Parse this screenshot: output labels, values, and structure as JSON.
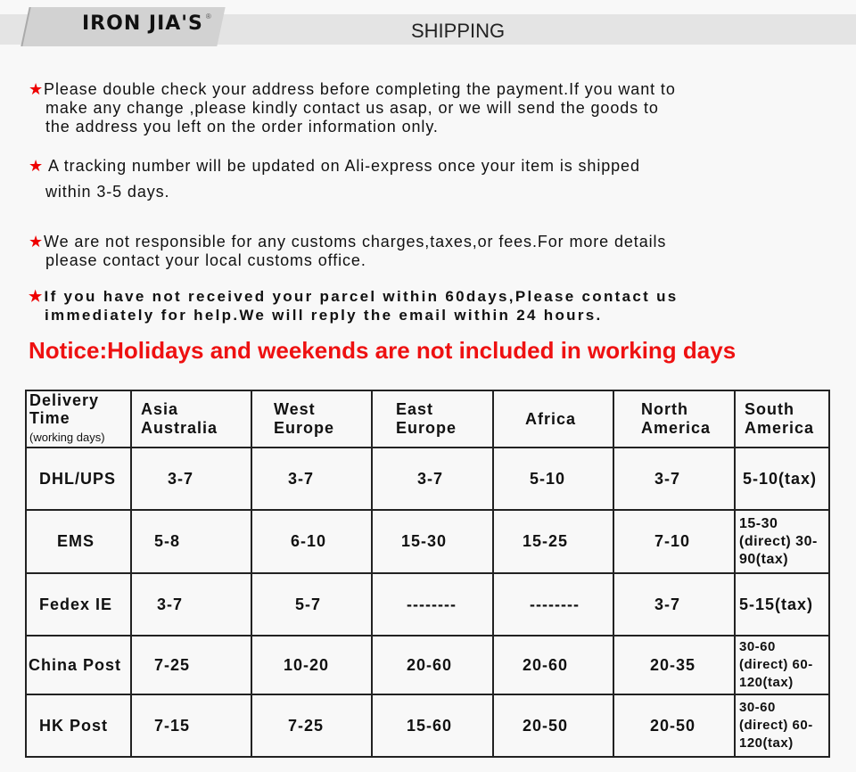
{
  "header": {
    "logo": "IRON JIA'S",
    "registered": "®",
    "title": "SHIPPING"
  },
  "notes": [
    {
      "star": "★",
      "lines": [
        "Please double check your address before completing the payment.If you want to",
        "make any change ,please kindly contact us asap, or we will send the goods to",
        "the address you left on the order information only."
      ]
    },
    {
      "star": "★",
      "lines": [
        " A tracking number will be updated on Ali-express once your item is shipped",
        "within 3-5 days."
      ]
    },
    {
      "star": "★",
      "lines": [
        "We are not responsible for any customs charges,taxes,or fees.For more details",
        "please contact your local customs office."
      ]
    },
    {
      "star": "★",
      "lines": [
        "If you have not received your parcel within 60days,Please contact us",
        "immediately for help.We will reply the email within 24 hours."
      ]
    }
  ],
  "notice": "Notice:Holidays and weekends are not included in working days",
  "table": {
    "corner": {
      "line1": "Delivery",
      "line2": "Time",
      "line3": "(working days)"
    },
    "headers": [
      [
        "Asia",
        "Australia"
      ],
      [
        "West",
        "Europe"
      ],
      [
        "East",
        "Europe"
      ],
      [
        "Africa",
        ""
      ],
      [
        "North",
        "America"
      ],
      [
        "South",
        "America"
      ]
    ],
    "rows": [
      {
        "carrier": "DHL/UPS",
        "values": [
          "3-7",
          "3-7",
          "3-7",
          "5-10",
          "3-7",
          "5-10(tax)"
        ]
      },
      {
        "carrier": "EMS",
        "values": [
          "5-8",
          "6-10",
          "15-30",
          "15-25",
          "7-10",
          "15-30 (direct) 30-90(tax)"
        ]
      },
      {
        "carrier": "Fedex IE",
        "values": [
          "3-7",
          "5-7",
          "--------",
          "--------",
          "3-7",
          "5-15(tax)"
        ]
      },
      {
        "carrier": "China Post",
        "values": [
          "7-25",
          "10-20",
          "20-60",
          "20-60",
          "20-35",
          "30-60 (direct) 60-120(tax)"
        ]
      },
      {
        "carrier": "HK Post",
        "values": [
          "7-15",
          "7-25",
          "15-60",
          "20-50",
          "20-50",
          "30-60 (direct) 60-120(tax)"
        ]
      }
    ]
  }
}
